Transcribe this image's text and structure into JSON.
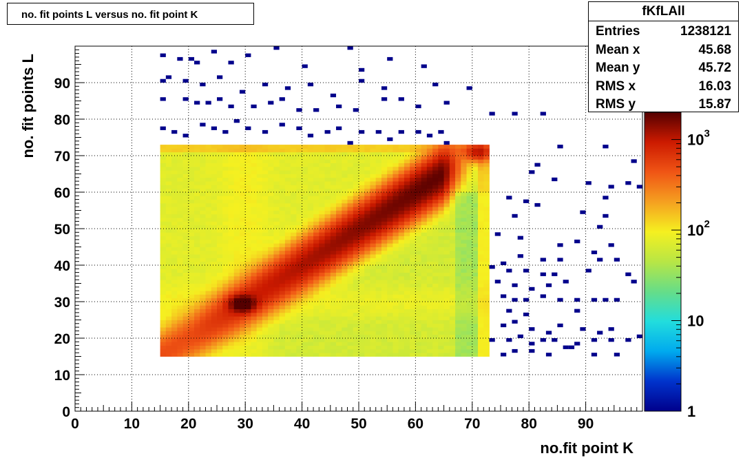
{
  "title": "no. fit points L versus no. fit point K",
  "stats": {
    "name": "fKfLAll",
    "rows": [
      {
        "label": "Entries",
        "value": "1238121"
      },
      {
        "label": "Mean x",
        "value": "45.68"
      },
      {
        "label": "Mean y",
        "value": "45.72"
      },
      {
        "label": "RMS x",
        "value": "16.03"
      },
      {
        "label": "RMS y",
        "value": "15.87"
      }
    ]
  },
  "chart_data": {
    "type": "heatmap",
    "title": "no. fit points L versus no. fit point K",
    "xlabel": "no.fit point K",
    "ylabel": "no. fit points  L",
    "xlim": [
      0,
      100
    ],
    "ylim": [
      0,
      100
    ],
    "xticks": [
      "0",
      "10",
      "20",
      "30",
      "40",
      "50",
      "60",
      "70",
      "80",
      "90"
    ],
    "yticks": [
      "0",
      "10",
      "20",
      "30",
      "40",
      "50",
      "60",
      "70",
      "80",
      "90"
    ],
    "grid": true,
    "z_scale": "log",
    "zlim": [
      1,
      2000
    ],
    "colorbar_ticks": [
      {
        "value": 1,
        "base": "1",
        "exp": ""
      },
      {
        "value": 10,
        "base": "10",
        "exp": ""
      },
      {
        "value": 100,
        "base": "10",
        "exp": "2"
      },
      {
        "value": 1000,
        "base": "10",
        "exp": "3"
      }
    ],
    "dense_region": {
      "x": [
        15,
        73
      ],
      "y": [
        15,
        73
      ]
    },
    "ridge": {
      "from": [
        15,
        15
      ],
      "through": [
        30,
        29
      ],
      "to": [
        64,
        63
      ],
      "peak_value": 1800
    },
    "hotspots": [
      {
        "x": 29.5,
        "y": 29.5,
        "value": 2000
      },
      {
        "x": 71,
        "y": 71,
        "value": 900
      }
    ],
    "sparse_points": [
      [
        15,
        97
      ],
      [
        18,
        96
      ],
      [
        20,
        96
      ],
      [
        21,
        95
      ],
      [
        24,
        98
      ],
      [
        27,
        95
      ],
      [
        30,
        97
      ],
      [
        35,
        99
      ],
      [
        40,
        94
      ],
      [
        48,
        99
      ],
      [
        50,
        93
      ],
      [
        55,
        96
      ],
      [
        61,
        94
      ],
      [
        15,
        90
      ],
      [
        16,
        91
      ],
      [
        19,
        90
      ],
      [
        22,
        89
      ],
      [
        25,
        91
      ],
      [
        29,
        87
      ],
      [
        33,
        89
      ],
      [
        37,
        88
      ],
      [
        41,
        89
      ],
      [
        45,
        86
      ],
      [
        50,
        90
      ],
      [
        54,
        88
      ],
      [
        63,
        89
      ],
      [
        69,
        88
      ],
      [
        15,
        85
      ],
      [
        19,
        85
      ],
      [
        21,
        84
      ],
      [
        23,
        84
      ],
      [
        25,
        85
      ],
      [
        27,
        83
      ],
      [
        31,
        83
      ],
      [
        34,
        84
      ],
      [
        36,
        85
      ],
      [
        39,
        82
      ],
      [
        42,
        82
      ],
      [
        46,
        83
      ],
      [
        49,
        82
      ],
      [
        54,
        85
      ],
      [
        57,
        85
      ],
      [
        60,
        83
      ],
      [
        65,
        84
      ],
      [
        73,
        81
      ],
      [
        77,
        81
      ],
      [
        82,
        81
      ],
      [
        15,
        77
      ],
      [
        17,
        76
      ],
      [
        19,
        75
      ],
      [
        22,
        78
      ],
      [
        24,
        77
      ],
      [
        26,
        76
      ],
      [
        28,
        79
      ],
      [
        30,
        77
      ],
      [
        33,
        76
      ],
      [
        36,
        78
      ],
      [
        39,
        77
      ],
      [
        41,
        75
      ],
      [
        44,
        76
      ],
      [
        46,
        77
      ],
      [
        48,
        73
      ],
      [
        50,
        76
      ],
      [
        53,
        76
      ],
      [
        55,
        74
      ],
      [
        57,
        76
      ],
      [
        60,
        76
      ],
      [
        62,
        75
      ],
      [
        64,
        76
      ],
      [
        65,
        73
      ],
      [
        85,
        72
      ],
      [
        93,
        72
      ],
      [
        98,
        68
      ],
      [
        81,
        67
      ],
      [
        80,
        65
      ],
      [
        84,
        63
      ],
      [
        90,
        62
      ],
      [
        94,
        61
      ],
      [
        97,
        62
      ],
      [
        99,
        61
      ],
      [
        93,
        58
      ],
      [
        76,
        58
      ],
      [
        79,
        57
      ],
      [
        81,
        56
      ],
      [
        89,
        54
      ],
      [
        77,
        53
      ],
      [
        93,
        53
      ],
      [
        92,
        50
      ],
      [
        74,
        48
      ],
      [
        78,
        47
      ],
      [
        88,
        46
      ],
      [
        85,
        45
      ],
      [
        94,
        45
      ],
      [
        91,
        43
      ],
      [
        75,
        40
      ],
      [
        78,
        42
      ],
      [
        82,
        41
      ],
      [
        85,
        41
      ],
      [
        92,
        41
      ],
      [
        95,
        41
      ],
      [
        73,
        39
      ],
      [
        76,
        38
      ],
      [
        79,
        38
      ],
      [
        82,
        37
      ],
      [
        84,
        37
      ],
      [
        90,
        38
      ],
      [
        97,
        37
      ],
      [
        74,
        35
      ],
      [
        77,
        34
      ],
      [
        80,
        33
      ],
      [
        83,
        34
      ],
      [
        86,
        35
      ],
      [
        98,
        35
      ],
      [
        75,
        31
      ],
      [
        77,
        30
      ],
      [
        79,
        30
      ],
      [
        82,
        31
      ],
      [
        85,
        30
      ],
      [
        88,
        30
      ],
      [
        91,
        30
      ],
      [
        93,
        30
      ],
      [
        95,
        30
      ],
      [
        76,
        27
      ],
      [
        79,
        26
      ],
      [
        88,
        27
      ],
      [
        75,
        23
      ],
      [
        77,
        24
      ],
      [
        80,
        22
      ],
      [
        83,
        21
      ],
      [
        85,
        23
      ],
      [
        89,
        22
      ],
      [
        92,
        21
      ],
      [
        94,
        22
      ],
      [
        73,
        19
      ],
      [
        76,
        19
      ],
      [
        78,
        20
      ],
      [
        80,
        18
      ],
      [
        82,
        19
      ],
      [
        84,
        19
      ],
      [
        86,
        17
      ],
      [
        88,
        18
      ],
      [
        91,
        19
      ],
      [
        94,
        19
      ],
      [
        97,
        19
      ],
      [
        99,
        20
      ],
      [
        75,
        15
      ],
      [
        77,
        16
      ],
      [
        80,
        16
      ],
      [
        83,
        15
      ],
      [
        87,
        17
      ],
      [
        91,
        15
      ],
      [
        95,
        15
      ]
    ]
  },
  "colors": {
    "frame": "#000000",
    "grid": "#000000",
    "palette": [
      "#00008b",
      "#0033cc",
      "#00aaee",
      "#22dddd",
      "#66dd88",
      "#b8e645",
      "#f5f020",
      "#f5a020",
      "#f05515",
      "#cc1a00",
      "#550000"
    ]
  }
}
